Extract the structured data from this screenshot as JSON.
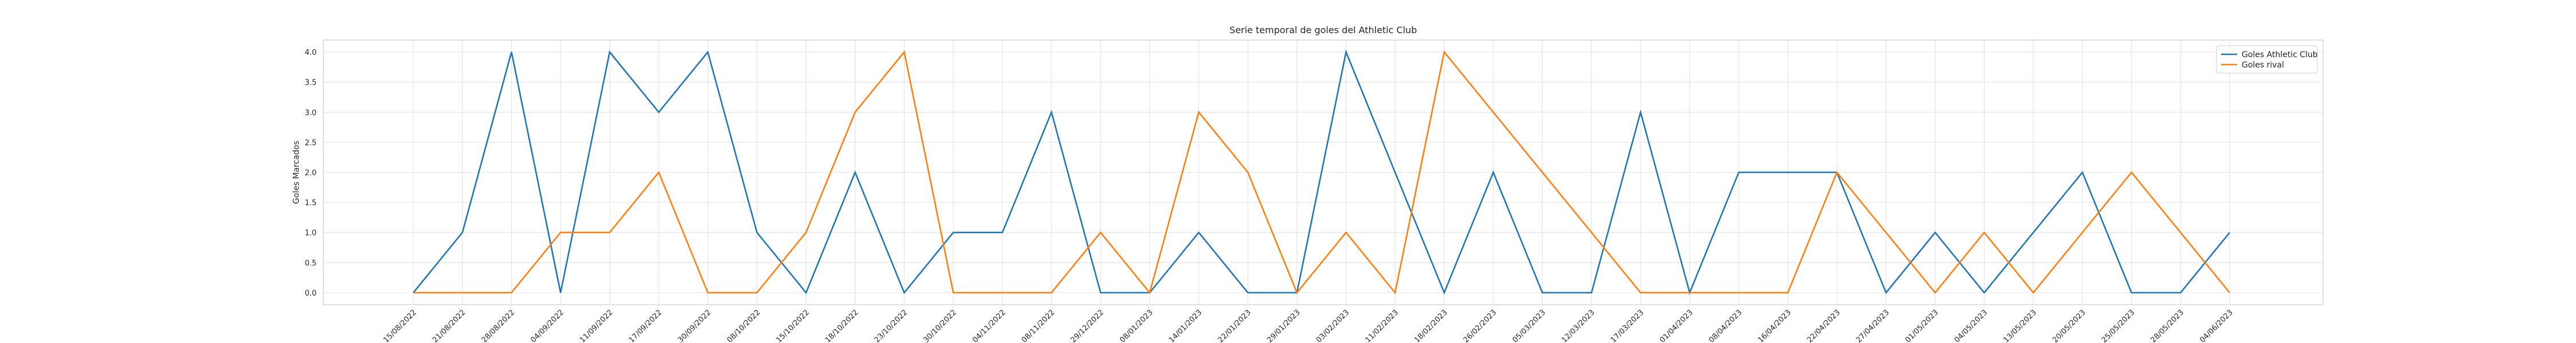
{
  "chart_data": {
    "type": "line",
    "title": "Serie temporal de goles del Athletic Club",
    "xlabel": "",
    "ylabel": "Goles Marcados",
    "ylim": [
      -0.2,
      4.2
    ],
    "yticks": [
      "0.0",
      "0.5",
      "1.0",
      "1.5",
      "2.0",
      "2.5",
      "3.0",
      "3.5",
      "4.0"
    ],
    "grid": true,
    "legend_position": "top-right",
    "categories": [
      "15/08/2022",
      "21/08/2022",
      "28/08/2022",
      "04/09/2022",
      "11/09/2022",
      "17/09/2022",
      "30/09/2022",
      "08/10/2022",
      "15/10/2022",
      "18/10/2022",
      "23/10/2022",
      "30/10/2022",
      "04/11/2022",
      "08/11/2022",
      "29/12/2022",
      "08/01/2023",
      "14/01/2023",
      "22/01/2023",
      "29/01/2023",
      "03/02/2023",
      "11/02/2023",
      "18/02/2023",
      "26/02/2023",
      "05/03/2023",
      "12/03/2023",
      "17/03/2023",
      "01/04/2023",
      "08/04/2023",
      "16/04/2023",
      "22/04/2023",
      "27/04/2023",
      "01/05/2023",
      "04/05/2023",
      "13/05/2023",
      "20/05/2023",
      "25/05/2023",
      "28/05/2023",
      "04/06/2023"
    ],
    "series": [
      {
        "name": "Goles Athletic Club",
        "color": "#1f77b4",
        "values": [
          0,
          1,
          4,
          0,
          4,
          3,
          4,
          1,
          0,
          2,
          0,
          1,
          1,
          3,
          0,
          0,
          1,
          0,
          0,
          4,
          2,
          0,
          2,
          0,
          0,
          3,
          0,
          2,
          2,
          2,
          0,
          1,
          0,
          1,
          2,
          0,
          0,
          1
        ]
      },
      {
        "name": "Goles rival",
        "color": "#ff7f0e",
        "values": [
          0,
          0,
          0,
          1,
          1,
          2,
          0,
          0,
          1,
          3,
          4,
          0,
          0,
          0,
          1,
          0,
          3,
          2,
          0,
          1,
          0,
          4,
          3,
          2,
          1,
          0,
          0,
          0,
          0,
          2,
          1,
          0,
          1,
          0,
          1,
          2,
          1,
          0
        ]
      }
    ]
  }
}
